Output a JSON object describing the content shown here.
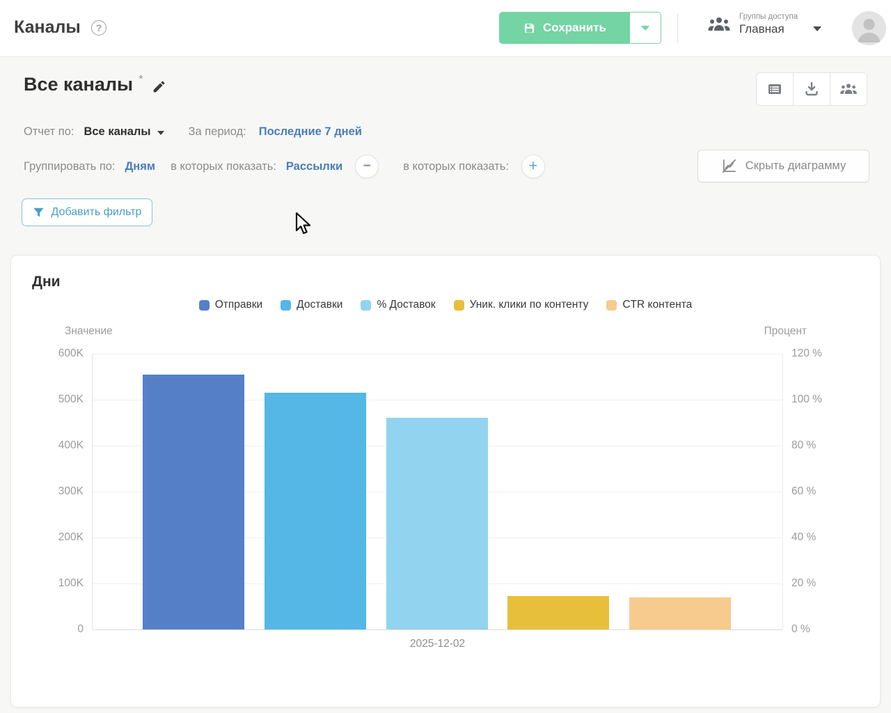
{
  "header": {
    "title": "Каналы",
    "save_label": "Сохранить",
    "access_group_label": "Группы доступа",
    "access_group_value": "Главная"
  },
  "report": {
    "title": "Все каналы",
    "asterisk": "*"
  },
  "filters": {
    "report_by_label": "Отчет по:",
    "report_by_value": "Все каналы",
    "period_label": "За период:",
    "period_value": "Последние 7 дней",
    "group_by_label": "Группировать по:",
    "group_by_value": "Дням",
    "show_in_label_1": "в которых показать:",
    "show_in_value_1": "Рассылки",
    "show_in_label_2": "в которых показать:",
    "hide_chart_label": "Скрыть диаграмму",
    "add_filter_label": "Добавить фильтр"
  },
  "icons": {
    "help": "?",
    "minus": "−",
    "plus": "+"
  },
  "chart_card": {
    "title": "Дни"
  },
  "chart_data": {
    "type": "bar",
    "title": "Дни",
    "categories": [
      "2025-12-02"
    ],
    "series": [
      {
        "name": "Отправки",
        "axis": "value",
        "values": [
          555000
        ],
        "color": "#5580c7"
      },
      {
        "name": "Доставки",
        "axis": "value",
        "values": [
          515000
        ],
        "color": "#54b7e6"
      },
      {
        "name": "% Доставок",
        "axis": "percent",
        "values": [
          92
        ],
        "color": "#92d3f0"
      },
      {
        "name": "Уник. клики по контенту",
        "axis": "value",
        "values": [
          73000
        ],
        "color": "#e7bf3b"
      },
      {
        "name": "CTR контента",
        "axis": "percent",
        "values": [
          14
        ],
        "color": "#f6cb8d"
      }
    ],
    "left_axis": {
      "label": "Значение",
      "max": 600000,
      "ticks": [
        "600K",
        "500K",
        "400K",
        "300K",
        "200K",
        "100K",
        "0"
      ]
    },
    "right_axis": {
      "label": "Процент",
      "max": 120,
      "ticks": [
        "120 %",
        "100 %",
        "80 %",
        "60 %",
        "40 %",
        "20 %",
        "0 %"
      ]
    },
    "legend_position": "top",
    "grid": true
  },
  "colors": {
    "accent_green": "#74d4a3",
    "link_blue": "#4a7ebc",
    "filter_blue": "#4e9fc8",
    "background": "#f7f7f5"
  }
}
